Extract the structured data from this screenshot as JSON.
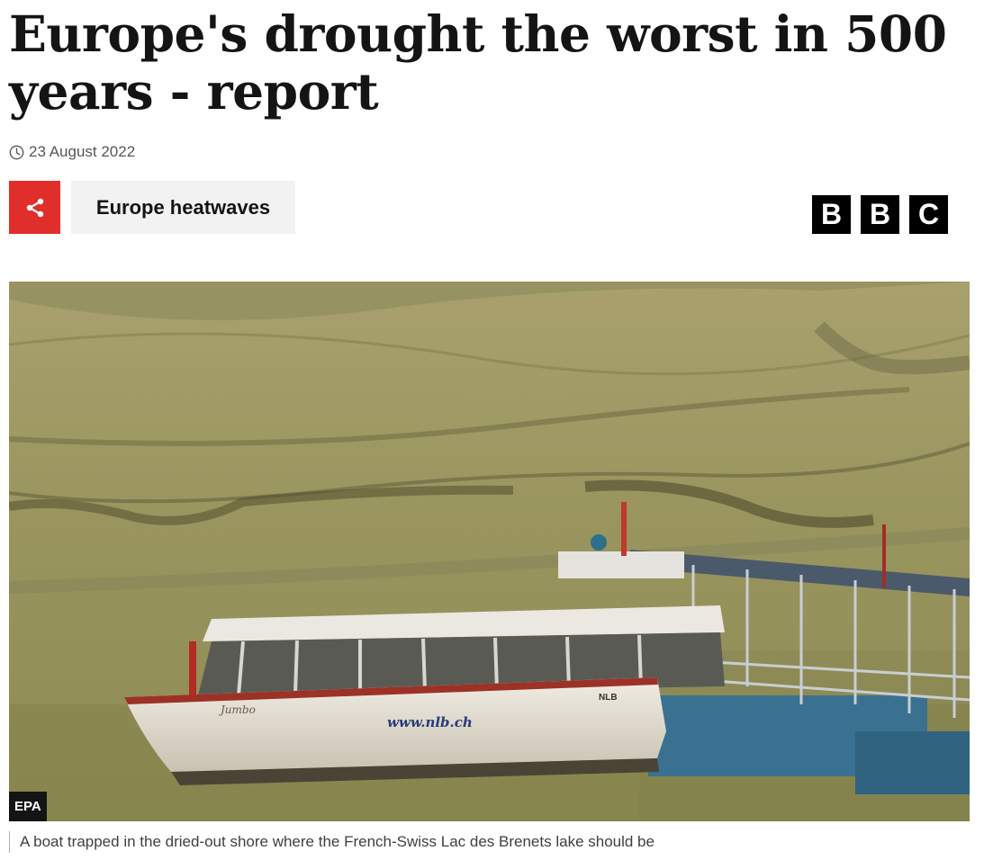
{
  "article": {
    "headline": "Europe's drought the worst in 500 years - report",
    "date": "23 August 2022",
    "topic_label": "Europe heatwaves"
  },
  "icons": {
    "share": "share-icon",
    "clock": "clock-icon"
  },
  "brand": {
    "letters": [
      "B",
      "B",
      "C"
    ],
    "share_color": "#e02f2a"
  },
  "image": {
    "boat_text": "www.nlb.ch",
    "boat_name": "Jumbo",
    "boat_reg": "NLB",
    "credit": "EPA",
    "caption": "A boat trapped in the dried-out shore where the French-Swiss Lac des Brenets lake should be"
  }
}
